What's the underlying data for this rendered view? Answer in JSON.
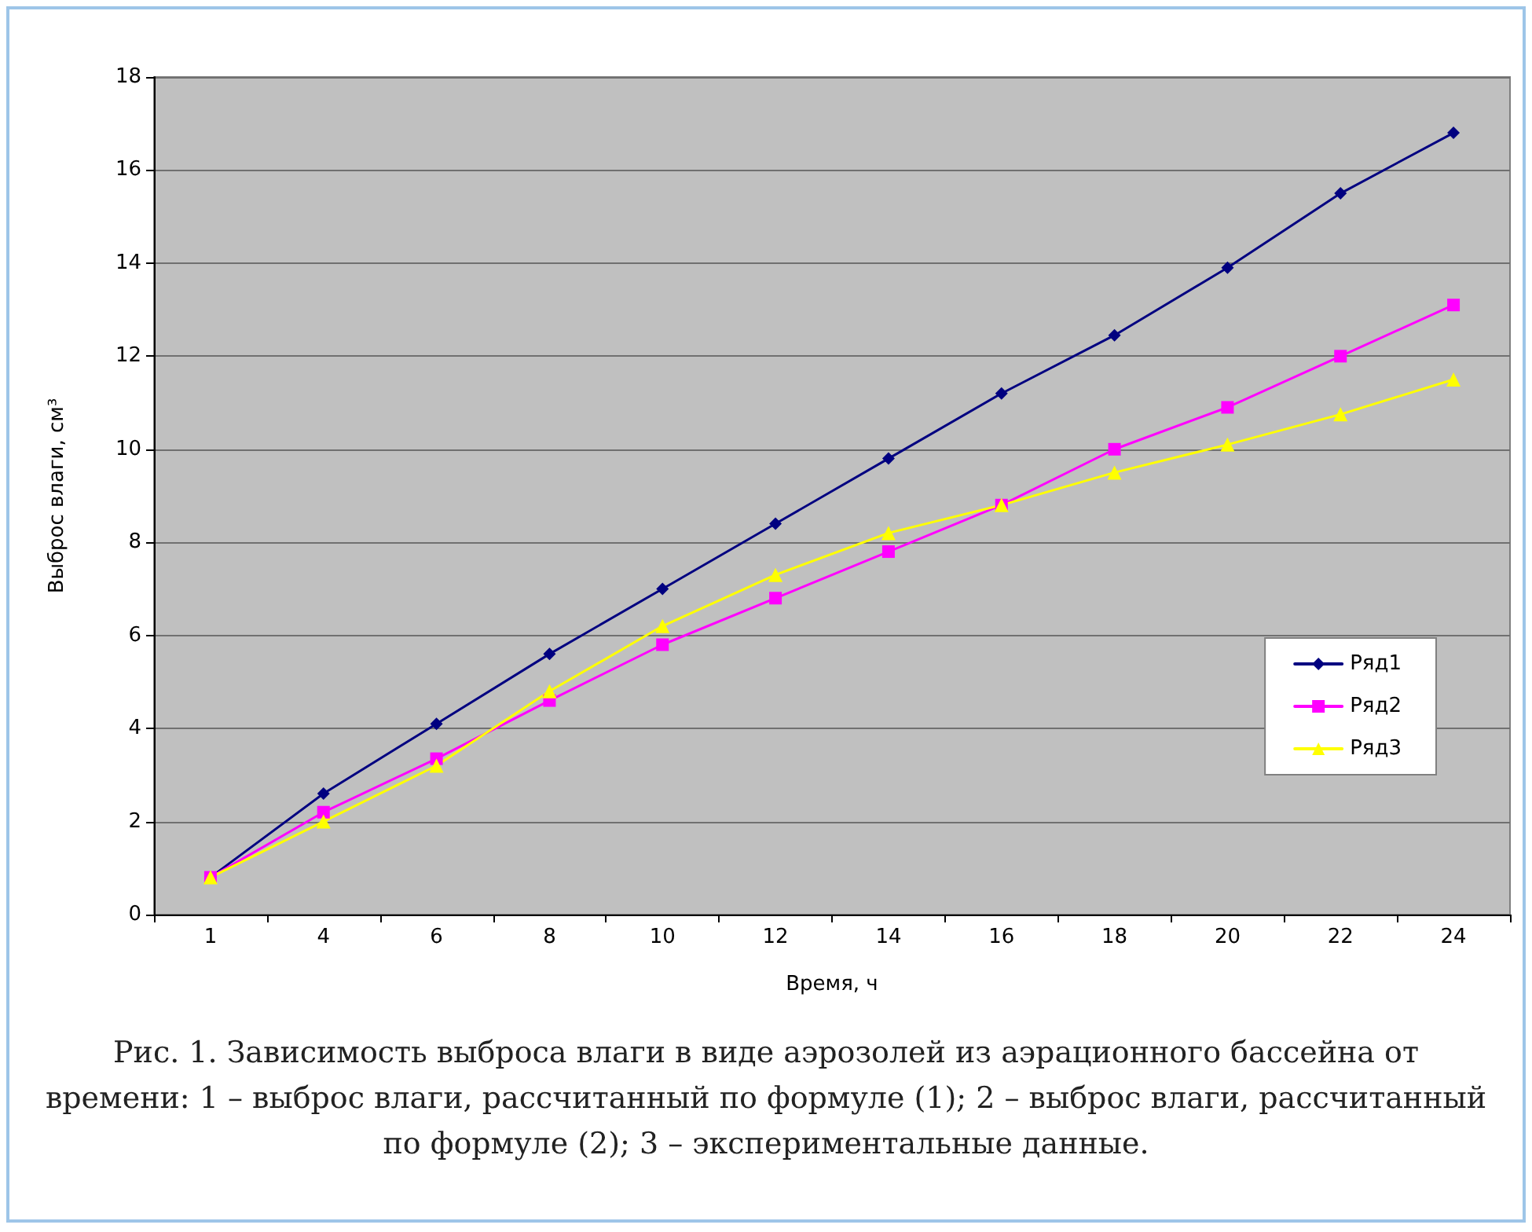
{
  "chart_data": {
    "type": "line",
    "xlabel": "Время, ч",
    "ylabel": "Выброс влаги, см³",
    "categories": [
      "1",
      "4",
      "6",
      "8",
      "10",
      "12",
      "14",
      "16",
      "18",
      "20",
      "22",
      "24"
    ],
    "series": [
      {
        "name": "Ряд1",
        "color": "#000080",
        "marker": "diamond",
        "values": [
          0.8,
          2.6,
          4.1,
          5.6,
          7.0,
          8.4,
          9.8,
          11.2,
          12.45,
          13.9,
          15.5,
          16.8
        ]
      },
      {
        "name": "Ряд2",
        "color": "#ff00ff",
        "marker": "square",
        "values": [
          0.8,
          2.2,
          3.35,
          4.6,
          5.8,
          6.8,
          7.8,
          8.8,
          10.0,
          10.9,
          12.0,
          13.1
        ]
      },
      {
        "name": "Ряд3",
        "color": "#ffff00",
        "marker": "triangle",
        "values": [
          0.8,
          2.0,
          3.2,
          4.8,
          6.2,
          7.3,
          8.2,
          8.8,
          9.5,
          10.1,
          10.75,
          11.5
        ]
      }
    ],
    "ylim": [
      0,
      18
    ],
    "yticks": [
      0,
      2,
      4,
      6,
      8,
      10,
      12,
      14,
      16,
      18
    ],
    "grid": "y",
    "legend": "right",
    "line_style": "solid",
    "annotations": [
      "Рис. 1. Зависимость выброса влаги в виде аэрозолей из аэрационного бассейна от времени: 1 – выброс влаги, рассчитанный по формуле (1); 2 – выброс влаги, рассчитанный по формуле (2); 3 – экспериментальные данные."
    ]
  }
}
